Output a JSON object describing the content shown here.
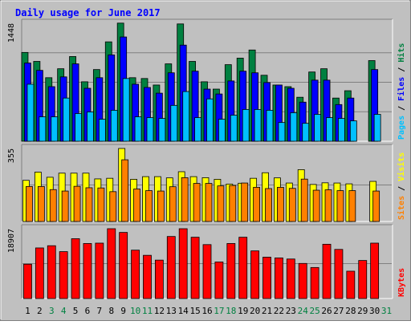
{
  "colors": {
    "background": "#c0c0c0",
    "title": "#0000ff",
    "hits": "#008040",
    "files": "#0000ff",
    "pages": "#00c0ff",
    "visits": "#ffff00",
    "sites": "#ff8000",
    "kbytes": "#ff0000",
    "weekend_label": "#008040",
    "label": "#000000"
  },
  "chart_data": {
    "type": "bar",
    "title": "Daily usage for June 2017",
    "days": [
      "1",
      "2",
      "3",
      "4",
      "5",
      "6",
      "7",
      "8",
      "9",
      "10",
      "11",
      "12",
      "13",
      "14",
      "15",
      "16",
      "17",
      "18",
      "19",
      "20",
      "21",
      "22",
      "23",
      "24",
      "25",
      "26",
      "27",
      "28",
      "29",
      "30",
      "31"
    ],
    "weekend_days": [
      "3",
      "4",
      "10",
      "11",
      "17",
      "18",
      "24",
      "25",
      "31"
    ],
    "panels": [
      {
        "id": "top",
        "max_label": "1448",
        "ylim": [
          0,
          1448
        ],
        "legend": [
          {
            "text": "Pages",
            "color": "#00c0ff"
          },
          {
            "text": " / ",
            "color": "#000000"
          },
          {
            "text": "Files",
            "color": "#0000ff"
          },
          {
            "text": " / ",
            "color": "#000000"
          },
          {
            "text": "Hits",
            "color": "#008040"
          }
        ],
        "series": [
          {
            "name": "Hits",
            "color": "#008040",
            "values": [
              1090,
              980,
              780,
              890,
              1040,
              730,
              880,
              1220,
              1450,
              780,
              770,
              690,
              950,
              1440,
              980,
              730,
              640,
              940,
              1020,
              1120,
              810,
              690,
              670,
              540,
              850,
              890,
              530,
              620,
              null,
              990,
              null
            ]
          },
          {
            "name": "Files",
            "color": "#0000ff",
            "values": [
              960,
              870,
              670,
              790,
              950,
              650,
              780,
              1060,
              1280,
              700,
              660,
              590,
              840,
              1180,
              860,
              640,
              580,
              740,
              860,
              840,
              720,
              690,
              650,
              480,
              750,
              750,
              450,
              530,
              null,
              880,
              null
            ]
          },
          {
            "name": "Pages",
            "color": "#00c0ff",
            "values": [
              700,
              300,
              300,
              530,
              340,
              360,
              270,
              380,
              770,
              300,
              290,
              280,
              440,
              610,
              290,
              520,
              270,
              320,
              390,
              390,
              380,
              230,
              350,
              220,
              330,
              290,
              280,
              250,
              null,
              330,
              null
            ]
          }
        ]
      },
      {
        "id": "middle",
        "max_label": "355",
        "ylim": [
          0,
          355
        ],
        "legend": [
          {
            "text": "Sites",
            "color": "#ff8000"
          },
          {
            "text": " / ",
            "color": "#000000"
          },
          {
            "text": "Visits",
            "color": "#ffff00"
          }
        ],
        "series": [
          {
            "name": "Visits",
            "color": "#ffff00",
            "values": [
              200,
              240,
              215,
              235,
              235,
              235,
              207,
              210,
              355,
              205,
              218,
              218,
              212,
              242,
              218,
              213,
              205,
              182,
              186,
              210,
              237,
              212,
              187,
              252,
              180,
              188,
              187,
              183,
              null,
              195,
              null
            ]
          },
          {
            "name": "Sites",
            "color": "#ff8000",
            "values": [
              170,
              170,
              155,
              148,
              171,
              164,
              163,
              145,
              300,
              158,
              150,
              148,
              169,
              213,
              185,
              185,
              173,
              175,
              187,
              166,
              160,
              166,
              161,
              206,
              152,
              154,
              150,
              150,
              null,
              148,
              null
            ]
          }
        ]
      },
      {
        "id": "bottom",
        "max_label": "18907",
        "ylim": [
          0,
          18907
        ],
        "legend": [
          {
            "text": "KBytes",
            "color": "#ff0000"
          }
        ],
        "series": [
          {
            "name": "KBytes",
            "color": "#ff0000",
            "values": [
              9300,
              13700,
              14300,
              12700,
              16200,
              14900,
              15000,
              18907,
              17900,
              13100,
              11700,
              10400,
              16800,
              18907,
              16600,
              14600,
              9900,
              14900,
              16600,
              12900,
              11200,
              11000,
              10700,
              9500,
              8400,
              14700,
              13300,
              7400,
              10300,
              15000,
              null
            ]
          }
        ]
      }
    ]
  }
}
